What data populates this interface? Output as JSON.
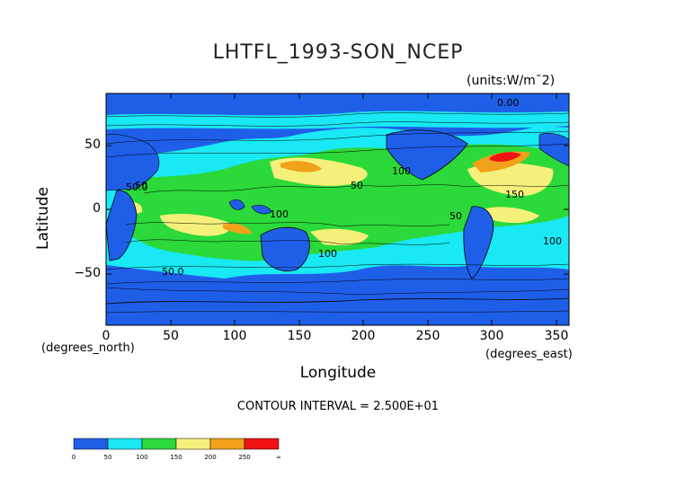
{
  "title": "LHTFL_1993-SON_NCEP",
  "units": "(units:W/m^2)",
  "units_display": "(units:W/m¯2)",
  "axes": {
    "ylabel": "Latitude",
    "xlabel": "Longitude",
    "x_unit_note": "(degrees_north)",
    "y_unit_note": "(degrees_east)",
    "yticks": [
      "50",
      "0",
      "−50"
    ],
    "xticks": [
      "0",
      "50",
      "100",
      "150",
      "200",
      "250",
      "300",
      "350"
    ]
  },
  "contour_interval": "CONTOUR INTERVAL = 2.500E+01",
  "map": {
    "lon_range": [
      0,
      360
    ],
    "lat_range": [
      -90,
      90
    ],
    "contour_labels": [
      "0.00",
      "100",
      "50",
      "100",
      "150",
      "50",
      "100",
      "100",
      "50.0",
      "50.0",
      "50"
    ]
  },
  "colorbar": {
    "labels": [
      "0",
      "50",
      "100",
      "150",
      "200",
      "250",
      "∞"
    ],
    "colors": [
      "#1f5fe8",
      "#19e8f5",
      "#2bd93a",
      "#f5f07a",
      "#f1a21a",
      "#f01414"
    ]
  },
  "colors": {
    "ocean_low": "#1f5fe8",
    "mid_low": "#19e8f5",
    "mid": "#2bd93a",
    "high": "#f5f07a",
    "higher": "#f1a21a",
    "highest": "#f01414"
  }
}
